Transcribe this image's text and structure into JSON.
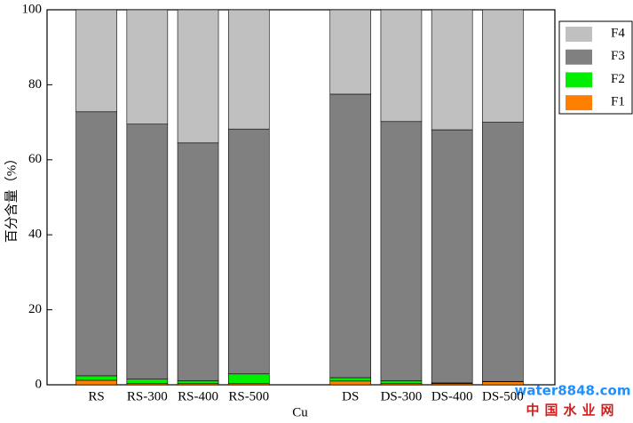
{
  "chart_data": {
    "type": "stacked_bar",
    "ylabel": "百分含量（%）",
    "xlabel": "Cu",
    "categories": [
      "RS",
      "RS-300",
      "RS-400",
      "RS-500",
      null,
      "DS",
      "DS-300",
      "DS-400",
      "DS-500"
    ],
    "series": [
      {
        "name": "F1",
        "color": "#ff8000",
        "values": [
          1.2,
          0.3,
          0.3,
          0.3,
          null,
          1.0,
          0.3,
          0.3,
          0.8
        ]
      },
      {
        "name": "F2",
        "color": "#00ee00",
        "values": [
          1.2,
          1.2,
          0.8,
          2.6,
          null,
          0.9,
          0.8,
          0.2,
          0.1
        ]
      },
      {
        "name": "F3",
        "color": "#808080",
        "values": [
          70.4,
          68.0,
          63.4,
          65.3,
          null,
          75.6,
          69.1,
          67.5,
          69.1
        ]
      },
      {
        "name": "F4",
        "color": "#c0c0c0",
        "values": [
          27.2,
          30.5,
          35.5,
          31.8,
          null,
          22.5,
          29.8,
          32.0,
          30.0
        ]
      }
    ],
    "ylim": [
      0,
      100
    ],
    "yticks": [
      0,
      20,
      40,
      60,
      80,
      100
    ],
    "grid": false,
    "legend": "upper right"
  },
  "watermark": {
    "brand": "water8848.com",
    "subtitle": "中国水业网"
  }
}
